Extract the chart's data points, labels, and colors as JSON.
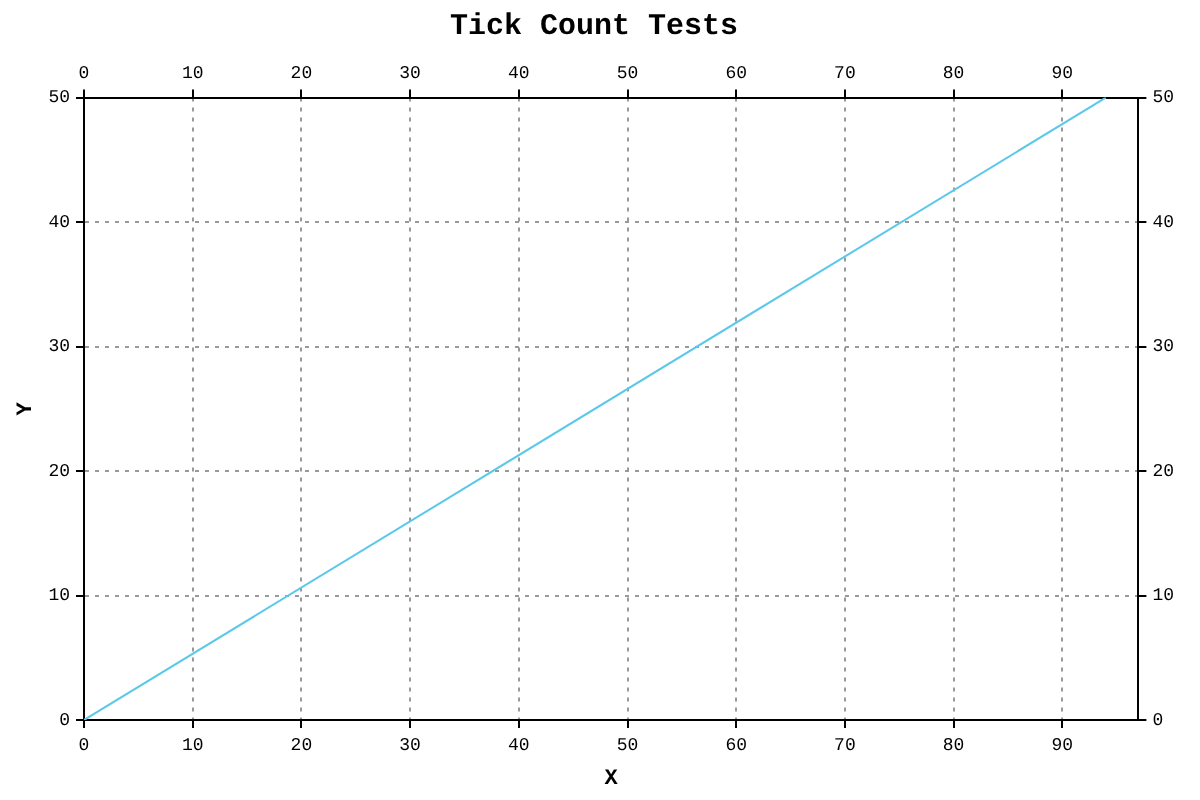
{
  "chart_data": {
    "type": "line",
    "title": "Tick Count Tests",
    "xlabel": "X",
    "ylabel": "Y",
    "x": [
      0,
      94
    ],
    "series": [
      {
        "color": "#5bc8ea",
        "values": [
          0,
          50
        ]
      }
    ],
    "xlim": [
      0,
      97
    ],
    "xticks": [
      0,
      10,
      20,
      30,
      40,
      50,
      60,
      70,
      80,
      90
    ],
    "x2lim": [
      0,
      97
    ],
    "x2ticks": [
      0,
      10,
      20,
      30,
      40,
      50,
      60,
      70,
      80,
      90
    ],
    "ylim": [
      0,
      50
    ],
    "yticks": [
      0,
      10,
      20,
      30,
      40,
      50
    ],
    "y2lim": [
      0,
      50
    ],
    "y2ticks": [
      0,
      10,
      20,
      30,
      40,
      50
    ],
    "grid": true,
    "legend": false,
    "marker": "none",
    "line_style": "solid"
  }
}
